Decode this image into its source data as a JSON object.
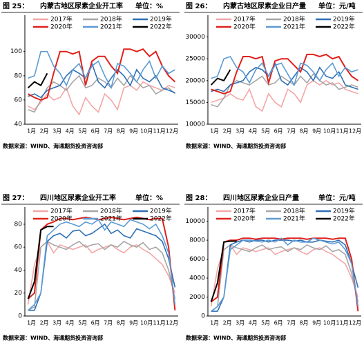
{
  "chart_data": [
    {
      "type": "line",
      "figure": "图 25：",
      "title": "内蒙古地区尿素企业开工率",
      "unit": "单位：%",
      "source": "数据来源：WIND、海通期货投资咨询部",
      "categories": [
        "1月",
        null,
        "2月",
        null,
        "3月",
        null,
        "4月",
        null,
        "5月",
        null,
        "6月",
        null,
        "7月",
        null,
        "8月",
        null,
        "9月",
        null,
        "10月",
        null,
        "11月",
        null,
        "12月",
        null
      ],
      "ylim": [
        40,
        130
      ],
      "yticks": [
        40,
        60,
        80,
        100
      ],
      "series": [
        {
          "name": "2017年",
          "color": "#f4a6a6",
          "values": [
            55,
            52,
            58,
            65,
            60,
            62,
            70,
            55,
            48,
            62,
            55,
            50,
            65,
            60,
            52,
            70,
            72,
            68,
            75,
            72,
            70,
            68,
            72,
            70
          ]
        },
        {
          "name": "2018年",
          "color": "#a6a6a6",
          "values": [
            52,
            50,
            60,
            70,
            75,
            72,
            68,
            75,
            80,
            70,
            72,
            78,
            75,
            70,
            78,
            72,
            80,
            75,
            70,
            72,
            65,
            68,
            70,
            65
          ]
        },
        {
          "name": "2019年",
          "color": "#2e6fb5",
          "values": [
            63,
            65,
            62,
            68,
            70,
            72,
            80,
            85,
            82,
            78,
            90,
            75,
            70,
            78,
            85,
            80,
            72,
            85,
            78,
            75,
            80,
            70,
            68,
            66
          ]
        },
        {
          "name": "2020年",
          "color": "#e0201b",
          "values": [
            65,
            62,
            60,
            62,
            82,
            100,
            100,
            98,
            100,
            72,
            92,
            96,
            96,
            88,
            82,
            102,
            102,
            100,
            102,
            96,
            100,
            88,
            80,
            75
          ]
        },
        {
          "name": "2021年",
          "color": "#5b9bd5",
          "values": [
            78,
            80,
            100,
            100,
            88,
            82,
            72,
            85,
            90,
            78,
            88,
            92,
            80,
            70,
            90,
            88,
            82,
            75,
            85,
            92,
            78,
            88,
            82,
            85
          ]
        },
        {
          "name": "2022年",
          "color": "#000000",
          "values": [
            70,
            75,
            72,
            82,
            null,
            null,
            null,
            null,
            null,
            null,
            null,
            null,
            null,
            null,
            null,
            null,
            null,
            null,
            null,
            null,
            null,
            null,
            null,
            null
          ]
        }
      ]
    },
    {
      "type": "line",
      "figure": "图 26：",
      "title": "内蒙古地区尿素企业日产量",
      "unit": "单位：元/吨",
      "source": "数据来源：WIND、海通期货投资咨询部",
      "categories": [
        "1月",
        null,
        "2月",
        null,
        "3月",
        null,
        "4月",
        null,
        "5月",
        null,
        "6月",
        null,
        "7月",
        null,
        "8月",
        null,
        "9月",
        null,
        "10月",
        null,
        "11月",
        null,
        "12月",
        null
      ],
      "ylim": [
        10000,
        35000
      ],
      "yticks": [
        10000,
        15000,
        20000,
        25000,
        30000
      ],
      "series": [
        {
          "name": "2017年",
          "color": "#f4a6a6",
          "values": [
            15000,
            15500,
            16000,
            17000,
            16000,
            15500,
            18000,
            14000,
            13000,
            17000,
            15000,
            14000,
            18000,
            17000,
            15000,
            19000,
            20000,
            19000,
            20000,
            19000,
            19500,
            18000,
            17500,
            17000
          ]
        },
        {
          "name": "2018年",
          "color": "#a6a6a6",
          "values": [
            14500,
            14000,
            16000,
            19000,
            20000,
            19500,
            19000,
            20000,
            21000,
            19000,
            19500,
            21000,
            20000,
            19000,
            21000,
            19500,
            21500,
            20000,
            19000,
            19500,
            18000,
            18500,
            19000,
            18500
          ]
        },
        {
          "name": "2019年",
          "color": "#2e6fb5",
          "values": [
            17500,
            18000,
            17500,
            19000,
            19500,
            20000,
            22000,
            23000,
            22500,
            21000,
            24000,
            20000,
            19000,
            21000,
            23000,
            22000,
            20000,
            23000,
            21000,
            20500,
            22000,
            19000,
            18500,
            18000
          ]
        },
        {
          "name": "2020年",
          "color": "#e0201b",
          "values": [
            18000,
            17500,
            17000,
            17500,
            22000,
            25500,
            25500,
            25000,
            25500,
            19500,
            24500,
            25000,
            25000,
            23500,
            22000,
            26000,
            26000,
            25500,
            26000,
            25000,
            25500,
            23000,
            21000,
            20000
          ]
        },
        {
          "name": "2021年",
          "color": "#5b9bd5",
          "values": [
            20500,
            21000,
            25000,
            25500,
            23000,
            22000,
            19500,
            22500,
            24000,
            21000,
            23500,
            24000,
            21500,
            19000,
            24000,
            23500,
            22000,
            20000,
            22500,
            24000,
            21000,
            23000,
            22000,
            22500
          ]
        },
        {
          "name": "2022年",
          "color": "#000000",
          "values": [
            19000,
            20500,
            20000,
            22500,
            null,
            null,
            null,
            null,
            null,
            null,
            null,
            null,
            null,
            null,
            null,
            null,
            null,
            null,
            null,
            null,
            null,
            null,
            null,
            null
          ]
        }
      ]
    },
    {
      "type": "line",
      "figure": "图 27：",
      "title": "四川地区尿素企业开工率",
      "unit": "单位：%",
      "source": "数据来源：WIND、海通期货投资咨询部",
      "categories": [
        "1月",
        null,
        "2月",
        null,
        "3月",
        null,
        "4月",
        null,
        "5月",
        null,
        "6月",
        null,
        "7月",
        null,
        "8月",
        null,
        "9月",
        null,
        "10月",
        null,
        "11月",
        null,
        "12月",
        null
      ],
      "ylim": [
        0,
        95
      ],
      "yticks": [
        0,
        20,
        40,
        60,
        80
      ],
      "series": [
        {
          "name": "2017年",
          "color": "#f4a6a6",
          "values": [
            10,
            45,
            60,
            65,
            55,
            62,
            60,
            58,
            60,
            62,
            55,
            58,
            60,
            62,
            58,
            55,
            60,
            62,
            58,
            55,
            50,
            45,
            35,
            20
          ]
        },
        {
          "name": "2018年",
          "color": "#a6a6a6",
          "values": [
            5,
            8,
            60,
            65,
            62,
            60,
            58,
            62,
            65,
            60,
            62,
            63,
            58,
            62,
            60,
            65,
            62,
            60,
            64,
            58,
            60,
            55,
            40,
            15
          ]
        },
        {
          "name": "2019年",
          "color": "#2e6fb5",
          "values": [
            5,
            5,
            20,
            65,
            70,
            72,
            68,
            74,
            75,
            70,
            72,
            76,
            80,
            72,
            75,
            70,
            68,
            76,
            74,
            72,
            70,
            65,
            50,
            25
          ]
        },
        {
          "name": "2020年",
          "color": "#e0201b",
          "values": [
            15,
            20,
            75,
            80,
            82,
            85,
            85,
            84,
            85,
            86,
            85,
            84,
            85,
            86,
            85,
            84,
            85,
            86,
            85,
            84,
            85,
            85,
            60,
            5
          ]
        },
        {
          "name": "2021年",
          "color": "#5b9bd5",
          "values": [
            5,
            10,
            20,
            70,
            75,
            80,
            82,
            80,
            78,
            82,
            80,
            84,
            75,
            82,
            80,
            78,
            84,
            82,
            80,
            76,
            80,
            70,
            55,
            10
          ]
        },
        {
          "name": "2022年",
          "color": "#000000",
          "values": [
            15,
            30,
            75,
            78,
            78,
            null,
            null,
            null,
            null,
            null,
            null,
            null,
            null,
            null,
            null,
            null,
            null,
            null,
            null,
            null,
            null,
            null,
            null,
            null
          ]
        }
      ]
    },
    {
      "type": "line",
      "figure": "图 28：",
      "title": "四川地区尿素企业日产量",
      "unit": "单位：元/吨",
      "source": "数据来源：WIND、海通期货投资咨询部",
      "categories": [
        "1月",
        null,
        "2月",
        null,
        "3月",
        null,
        "4月",
        null,
        "5月",
        null,
        "6月",
        null,
        "7月",
        null,
        "8月",
        null,
        "9月",
        null,
        "10月",
        null,
        "11月",
        null,
        "12月",
        null
      ],
      "ylim": [
        0,
        11500
      ],
      "yticks": [
        0,
        2000,
        4000,
        6000,
        8000,
        10000
      ],
      "series": [
        {
          "name": "2017年",
          "color": "#f4a6a6",
          "values": [
            1000,
            5000,
            7000,
            7500,
            6500,
            7200,
            7000,
            6800,
            7000,
            7200,
            6500,
            6800,
            7000,
            7200,
            6800,
            6500,
            7000,
            7200,
            6800,
            6500,
            6000,
            5500,
            4000,
            2000
          ]
        },
        {
          "name": "2018年",
          "color": "#a6a6a6",
          "values": [
            500,
            1000,
            7000,
            7500,
            7200,
            7000,
            6800,
            7200,
            7500,
            7000,
            7200,
            7300,
            6800,
            7200,
            7000,
            7500,
            7200,
            7000,
            7400,
            6800,
            7000,
            6500,
            4500,
            1500
          ]
        },
        {
          "name": "2019年",
          "color": "#2e6fb5",
          "values": [
            500,
            500,
            2000,
            7500,
            7800,
            8000,
            7800,
            8000,
            8000,
            7800,
            8000,
            8000,
            8000,
            7900,
            8000,
            7800,
            7800,
            8000,
            7900,
            7800,
            8000,
            7500,
            5500,
            3000
          ]
        },
        {
          "name": "2020年",
          "color": "#e0201b",
          "values": [
            1500,
            2000,
            7800,
            8000,
            8000,
            8200,
            8200,
            8100,
            8200,
            8200,
            8200,
            8100,
            8200,
            8200,
            8200,
            8100,
            8200,
            8200,
            8200,
            8100,
            8200,
            8200,
            6000,
            500
          ]
        },
        {
          "name": "2021年",
          "color": "#5b9bd5",
          "values": [
            500,
            1000,
            2000,
            7000,
            7500,
            8000,
            8000,
            7900,
            7800,
            8000,
            7800,
            8200,
            7500,
            8000,
            7800,
            7800,
            8200,
            8000,
            7800,
            7600,
            7800,
            7000,
            5500,
            1000
          ]
        },
        {
          "name": "2022年",
          "color": "#000000",
          "values": [
            1500,
            3500,
            7800,
            7900,
            7900,
            null,
            null,
            null,
            null,
            null,
            null,
            null,
            null,
            null,
            null,
            null,
            null,
            null,
            null,
            null,
            null,
            null,
            null,
            null
          ]
        }
      ]
    }
  ]
}
